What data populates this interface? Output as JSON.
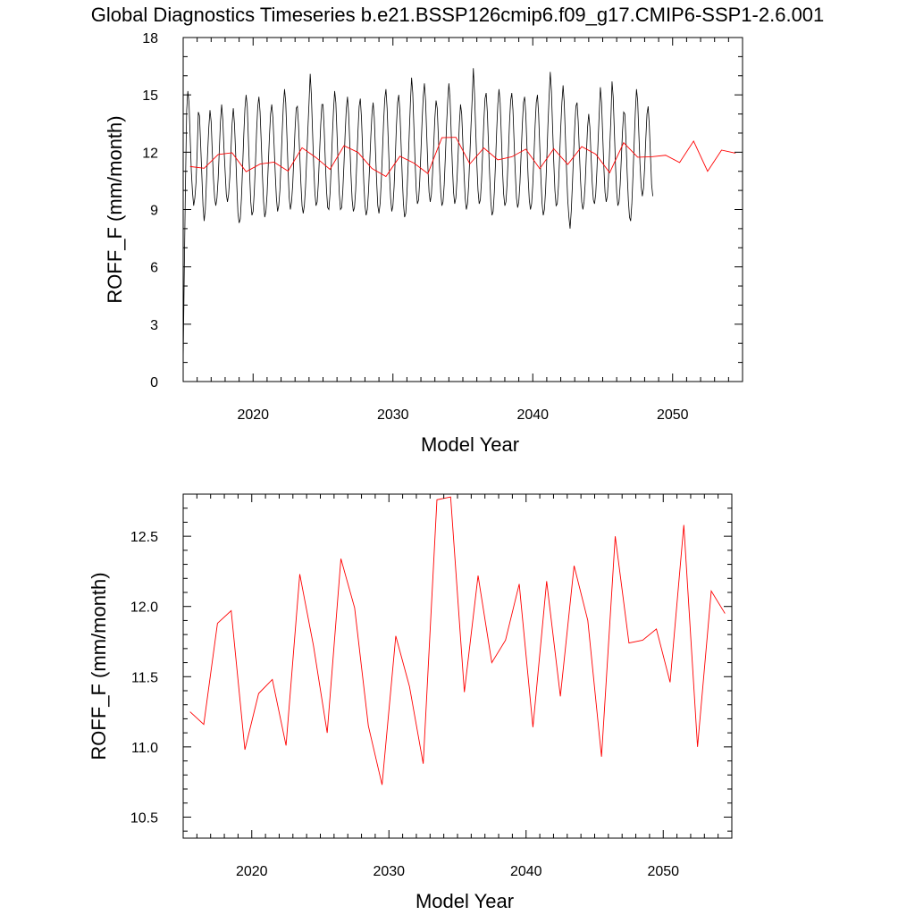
{
  "title": "Global Diagnostics Timeseries b.e21.BSSP126cmip6.f09_g17.CMIP6-SSP1-2.6.001",
  "colors": {
    "monthly": "#000000",
    "annual": "#ff0000",
    "frame": "#000000"
  },
  "chart_data": [
    {
      "type": "line",
      "xlabel": "Model Year",
      "ylabel": "ROFF_F (mm/month)",
      "xlim": [
        2015,
        2055
      ],
      "ylim": [
        0,
        18
      ],
      "xticks": [
        2020,
        2030,
        2040,
        2050
      ],
      "yticks": [
        0,
        3,
        6,
        9,
        12,
        15,
        18
      ],
      "ytick_labels": [
        "0",
        "3",
        "6",
        "9",
        "12",
        "15",
        "18"
      ],
      "series": [
        {
          "kind": "monthly",
          "x_start": 2015.0,
          "step": 0.0833333,
          "values": [
            1.0,
            6.0,
            10.5,
            14.2,
            15.2,
            14.6,
            12.8,
            11.0,
            9.9,
            9.2,
            9.6,
            10.4,
            12.0,
            14.1,
            13.9,
            12.4,
            10.8,
            9.2,
            8.4,
            9.0,
            10.5,
            12.0,
            13.3,
            14.2,
            13.6,
            12.0,
            10.6,
            9.6,
            9.2,
            9.6,
            10.6,
            12.1,
            13.6,
            14.5,
            13.7,
            12.2,
            11.0,
            9.8,
            9.4,
            9.8,
            10.7,
            12.1,
            13.5,
            14.3,
            13.5,
            12.0,
            10.3,
            8.8,
            8.3,
            8.5,
            9.6,
            11.2,
            12.9,
            14.3,
            15.0,
            14.4,
            12.6,
            10.9,
            9.4,
            8.7,
            8.9,
            9.9,
            11.4,
            13.1,
            14.4,
            14.9,
            14.1,
            12.5,
            10.8,
            9.4,
            8.6,
            8.9,
            9.8,
            11.3,
            12.8,
            14.0,
            14.5,
            13.8,
            12.4,
            10.9,
            9.6,
            8.9,
            9.2,
            10.0,
            11.5,
            13.1,
            14.5,
            15.3,
            14.6,
            12.9,
            11.1,
            9.6,
            9.0,
            9.4,
            10.3,
            11.8,
            13.2,
            14.3,
            14.4,
            13.4,
            11.9,
            10.4,
            9.2,
            8.8,
            9.2,
            10.2,
            11.7,
            13.2,
            14.6,
            16.1,
            15.0,
            13.1,
            11.3,
            9.9,
            9.2,
            9.4,
            10.4,
            11.9,
            13.4,
            14.5,
            14.5,
            13.2,
            11.5,
            10.0,
            9.1,
            9.0,
            9.8,
            11.2,
            12.8,
            14.2,
            15.2,
            14.6,
            13.0,
            11.3,
            9.8,
            9.0,
            9.1,
            10.0,
            11.4,
            13.0,
            14.3,
            14.9,
            14.0,
            12.4,
            10.8,
            9.5,
            8.9,
            9.1,
            10.0,
            11.5,
            13.1,
            14.4,
            14.8,
            13.8,
            12.1,
            10.4,
            9.2,
            8.7,
            9.0,
            9.9,
            11.3,
            12.8,
            14.0,
            14.6,
            13.8,
            12.1,
            10.5,
            9.2,
            8.8,
            9.3,
            10.5,
            12.0,
            13.6,
            14.8,
            15.3,
            14.3,
            12.6,
            10.9,
            9.6,
            8.9,
            9.2,
            10.2,
            11.7,
            13.4,
            14.6,
            15.0,
            14.1,
            12.4,
            10.7,
            9.3,
            8.6,
            8.8,
            9.8,
            11.3,
            13.0,
            14.6,
            15.9,
            15.1,
            13.3,
            11.5,
            10.0,
            9.3,
            9.5,
            10.5,
            12.0,
            13.6,
            14.9,
            15.6,
            14.7,
            12.9,
            11.2,
            9.9,
            9.4,
            9.8,
            10.9,
            12.4,
            13.8,
            14.7,
            14.3,
            12.8,
            11.2,
            9.9,
            9.2,
            9.4,
            10.3,
            11.8,
            13.4,
            14.7,
            15.6,
            14.8,
            13.0,
            11.3,
            9.9,
            9.3,
            9.6,
            10.6,
            12.0,
            13.5,
            14.5,
            14.0,
            12.5,
            10.9,
            9.6,
            9.0,
            9.3,
            10.3,
            11.8,
            13.4,
            14.8,
            16.4,
            15.1,
            13.2,
            11.4,
            10.0,
            9.3,
            9.5,
            10.5,
            12.0,
            13.6,
            14.8,
            15.1,
            14.1,
            12.4,
            10.8,
            9.4,
            8.7,
            8.9,
            9.9,
            11.4,
            13.1,
            14.5,
            15.3,
            14.6,
            12.9,
            11.1,
            9.8,
            9.2,
            9.4,
            10.4,
            11.9,
            13.5,
            14.7,
            15.1,
            14.2,
            12.5,
            10.9,
            9.6,
            9.1,
            9.4,
            10.4,
            11.9,
            13.4,
            14.6,
            14.9,
            14.0,
            12.3,
            10.7,
            9.5,
            9.0,
            9.3,
            10.3,
            11.8,
            13.4,
            14.6,
            15.0,
            14.0,
            12.3,
            10.6,
            9.3,
            8.7,
            9.0,
            10.0,
            11.6,
            13.4,
            14.9,
            16.2,
            15.2,
            13.3,
            11.5,
            10.0,
            9.2,
            9.3,
            10.2,
            11.7,
            13.3,
            14.6,
            15.5,
            14.6,
            12.8,
            11.0,
            9.5,
            8.6,
            8.0,
            8.9,
            10.3,
            11.9,
            13.3,
            14.4,
            14.6,
            13.6,
            12.0,
            10.5,
            9.4,
            9.0,
            9.4,
            10.4,
            11.9,
            13.3,
            14.0,
            13.3,
            11.8,
            10.4,
            9.5,
            9.3,
            9.8,
            11.0,
            12.5,
            14.0,
            15.4,
            14.6,
            12.9,
            11.2,
            9.9,
            9.4,
            9.7,
            10.7,
            12.2,
            13.7,
            15.7,
            14.9,
            13.1,
            11.3,
            9.9,
            9.2,
            9.4,
            10.3,
            11.7,
            13.1,
            14.1,
            14.0,
            12.6,
            10.9,
            9.5,
            8.6,
            8.4,
            9.3,
            10.8,
            12.5,
            14.1,
            15.3,
            14.7,
            13.0,
            11.4,
            10.2,
            9.7,
            10.1,
            11.2,
            12.7,
            14.0,
            14.4,
            13.4,
            11.8,
            10.3,
            9.7
          ]
        },
        {
          "kind": "annual",
          "x": [
            2015.5,
            2016.5,
            2017.5,
            2018.5,
            2019.5,
            2020.5,
            2021.5,
            2022.5,
            2023.5,
            2024.5,
            2025.5,
            2026.5,
            2027.5,
            2028.5,
            2029.5,
            2030.5,
            2031.5,
            2032.5,
            2033.5,
            2034.5,
            2035.5,
            2036.5,
            2037.5,
            2038.5,
            2039.5,
            2040.5,
            2041.5,
            2042.5,
            2043.5,
            2044.5,
            2045.5,
            2046.5,
            2047.5,
            2048.5,
            2049.5,
            2050.5,
            2051.5,
            2052.5,
            2053.5,
            2054.5
          ],
          "values": [
            11.25,
            11.16,
            11.88,
            11.97,
            10.98,
            11.38,
            11.48,
            11.01,
            12.23,
            11.72,
            11.1,
            12.34,
            11.99,
            11.15,
            10.73,
            11.79,
            11.43,
            10.88,
            12.76,
            12.78,
            11.39,
            12.22,
            11.6,
            11.76,
            12.16,
            11.14,
            12.18,
            11.36,
            12.29,
            11.9,
            10.93,
            12.5,
            11.74,
            11.76,
            11.84,
            11.46,
            12.58,
            11.0,
            12.11,
            11.95
          ]
        }
      ]
    },
    {
      "type": "line",
      "xlabel": "Model Year",
      "ylabel": "ROFF_F (mm/month)",
      "xlim": [
        2015,
        2055
      ],
      "ylim": [
        10.35,
        12.8
      ],
      "xticks": [
        2020,
        2030,
        2040,
        2050
      ],
      "yticks": [
        10.5,
        11.0,
        11.5,
        12.0,
        12.5
      ],
      "ytick_labels": [
        "10.5",
        "11.0",
        "11.5",
        "12.0",
        "12.5"
      ],
      "series": [
        {
          "kind": "annual",
          "x": [
            2015.5,
            2016.5,
            2017.5,
            2018.5,
            2019.5,
            2020.5,
            2021.5,
            2022.5,
            2023.5,
            2024.5,
            2025.5,
            2026.5,
            2027.5,
            2028.5,
            2029.5,
            2030.5,
            2031.5,
            2032.5,
            2033.5,
            2034.5,
            2035.5,
            2036.5,
            2037.5,
            2038.5,
            2039.5,
            2040.5,
            2041.5,
            2042.5,
            2043.5,
            2044.5,
            2045.5,
            2046.5,
            2047.5,
            2048.5,
            2049.5,
            2050.5,
            2051.5,
            2052.5,
            2053.5,
            2054.5
          ],
          "values": [
            11.25,
            11.16,
            11.88,
            11.97,
            10.98,
            11.38,
            11.48,
            11.01,
            12.23,
            11.72,
            11.1,
            12.34,
            11.99,
            11.15,
            10.73,
            11.79,
            11.43,
            10.88,
            12.76,
            12.78,
            11.39,
            12.22,
            11.6,
            11.76,
            12.16,
            11.14,
            12.18,
            11.36,
            12.29,
            11.9,
            10.93,
            12.5,
            11.74,
            11.76,
            11.84,
            11.46,
            12.58,
            11.0,
            12.11,
            11.95
          ]
        }
      ]
    }
  ]
}
